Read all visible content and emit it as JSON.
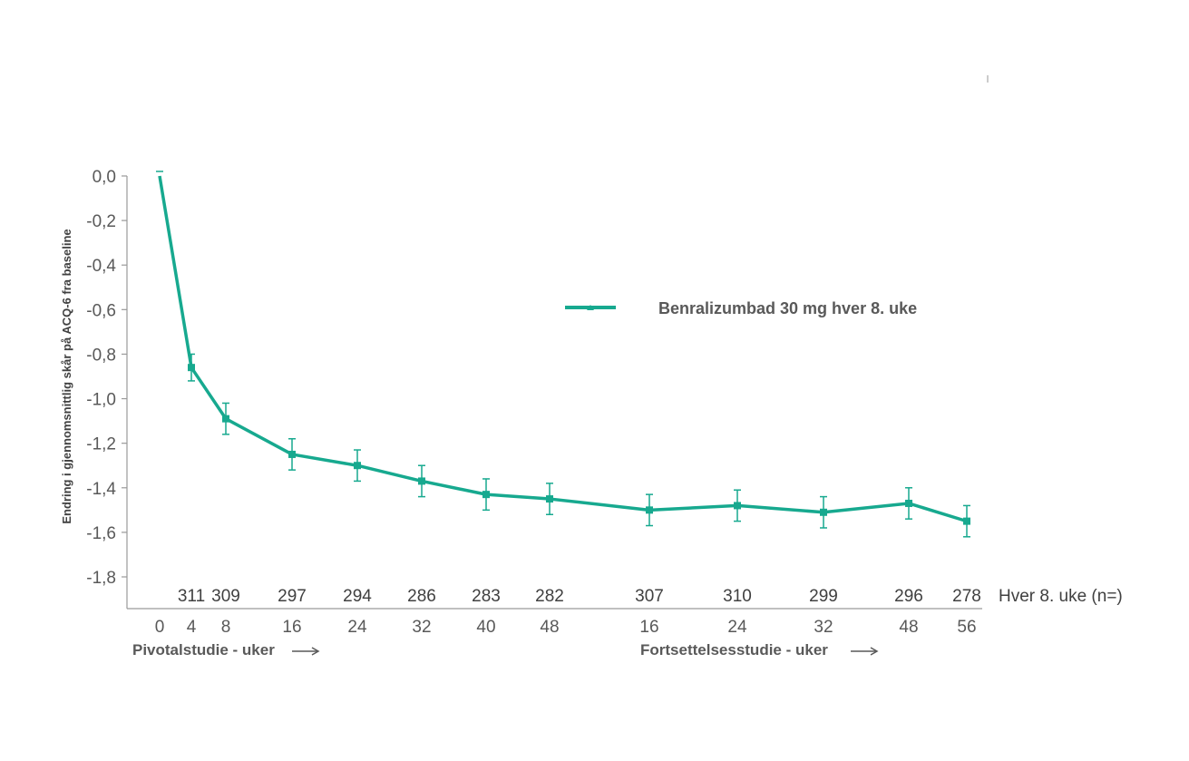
{
  "chart_data": {
    "type": "line",
    "ylabel": "Endring i gjennomsnittlig skår på ACQ-6 fra baseline",
    "ylim": [
      -1.8,
      0.0
    ],
    "yticks": [
      "0,0",
      "-0,2",
      "-0,4",
      "-0,6",
      "-0,8",
      "-1,0",
      "-1,2",
      "-1,4",
      "-1,6",
      "-1,8"
    ],
    "ytick_values": [
      0.0,
      -0.2,
      -0.4,
      -0.6,
      -0.8,
      -1.0,
      -1.2,
      -1.4,
      -1.6,
      -1.8
    ],
    "x_tick_labels": [
      "0",
      "4",
      "8",
      "16",
      "24",
      "32",
      "40",
      "48",
      "16",
      "24",
      "32",
      "48",
      "56"
    ],
    "n_label": "Hver 8. uke (n=)",
    "n_values": [
      "311",
      "309",
      "297",
      "294",
      "286",
      "283",
      "282",
      "307",
      "310",
      "299",
      "296",
      "278"
    ],
    "pivotal_label": "Pivotalstudie - uker",
    "extension_label": "Fortsettelsesstudie - uker",
    "legend": "top-right",
    "grid": false,
    "series": [
      {
        "name": "Benralizumbad 30 mg hver 8. uke",
        "color": "#17A98F",
        "points": [
          {
            "x": "0",
            "y": 0.0,
            "err": 0.0
          },
          {
            "x": "4",
            "y": -0.86,
            "err": 0.06
          },
          {
            "x": "8",
            "y": -1.09,
            "err": 0.07
          },
          {
            "x": "16",
            "y": -1.25,
            "err": 0.07
          },
          {
            "x": "24",
            "y": -1.3,
            "err": 0.07
          },
          {
            "x": "32",
            "y": -1.37,
            "err": 0.07
          },
          {
            "x": "40",
            "y": -1.43,
            "err": 0.07
          },
          {
            "x": "48",
            "y": -1.45,
            "err": 0.07
          },
          {
            "x": "16",
            "y": -1.5,
            "err": 0.07
          },
          {
            "x": "24",
            "y": -1.48,
            "err": 0.07
          },
          {
            "x": "32",
            "y": -1.51,
            "err": 0.07
          },
          {
            "x": "48",
            "y": -1.47,
            "err": 0.07
          },
          {
            "x": "56",
            "y": -1.55,
            "err": 0.07
          }
        ]
      }
    ]
  }
}
